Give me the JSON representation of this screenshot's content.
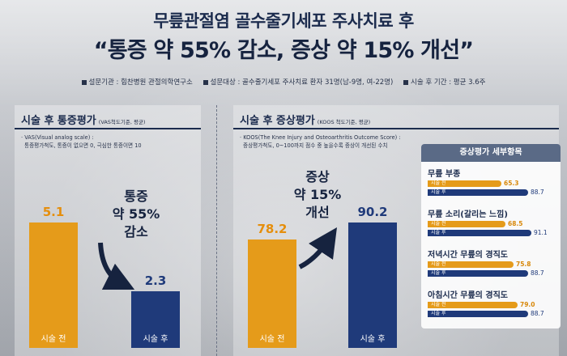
{
  "header": {
    "subtitle": "무릎관절염 골수줄기세포 주사치료 후",
    "headline": "“통증 약 55% 감소, 증상 약 15% 개선”",
    "info": [
      "설문기관 : 힘찬병원 관절의학연구소",
      "설문대상 : 골수줄기세포 주사치료 환자 31명(남-9명, 여-22명)",
      "시술 후 기간 : 평균 3.6주"
    ]
  },
  "colors": {
    "before": "#e59b1a",
    "after": "#1f3a7a",
    "title": "#1b2b4d"
  },
  "chart_data": [
    {
      "type": "bar",
      "title": "시술 후 통증평가",
      "subtitle": "(VAS척도기준, 평균)",
      "note": [
        "· VAS(Visual analog scale) :",
        "통증평가척도, 통증이 없으면 0, 극심한 통증이면 10"
      ],
      "categories": [
        "시술 전",
        "시술 후"
      ],
      "values": [
        5.1,
        2.3
      ],
      "value_labels": [
        "5.1",
        "2.3"
      ],
      "ylim": [
        0,
        5.1
      ],
      "callout": [
        "통증",
        "약 55%",
        "감소"
      ]
    },
    {
      "type": "bar",
      "title": "시술 후 증상평가",
      "subtitle": "(KOOS 척도기준, 평균)",
      "note": [
        "· KOOS(The Knee Injury and Osteoarthritis Outcome Score) :",
        "증상평가척도, 0~100까지 점수 중 높을수록 증상이 개선된 수치"
      ],
      "categories": [
        "시술 전",
        "시술 후"
      ],
      "values": [
        78.2,
        90.2
      ],
      "value_labels": [
        "78.2",
        "90.2"
      ],
      "ylim": [
        0,
        90.2
      ],
      "callout": [
        "증상",
        "약 15%",
        "개선"
      ]
    },
    {
      "type": "bar",
      "orientation": "horizontal",
      "title": "증상평가 세부항목",
      "series_tags": [
        "시술 전",
        "시술 후"
      ],
      "xlim": [
        0,
        100
      ],
      "items": [
        {
          "name": "무릎 부종",
          "before": 65.3,
          "after": 88.7,
          "before_label": "65.3",
          "after_label": "88.7"
        },
        {
          "name": "무릎 소리(갈리는 느낌)",
          "before": 68.5,
          "after": 91.1,
          "before_label": "68.5",
          "after_label": "91.1"
        },
        {
          "name": "저녁시간 무릎의 경직도",
          "before": 75.8,
          "after": 88.7,
          "before_label": "75.8",
          "after_label": "88.7"
        },
        {
          "name": "아침시간 무릎의 경직도",
          "before": 79.0,
          "after": 88.7,
          "before_label": "79.0",
          "after_label": "88.7"
        }
      ]
    }
  ]
}
